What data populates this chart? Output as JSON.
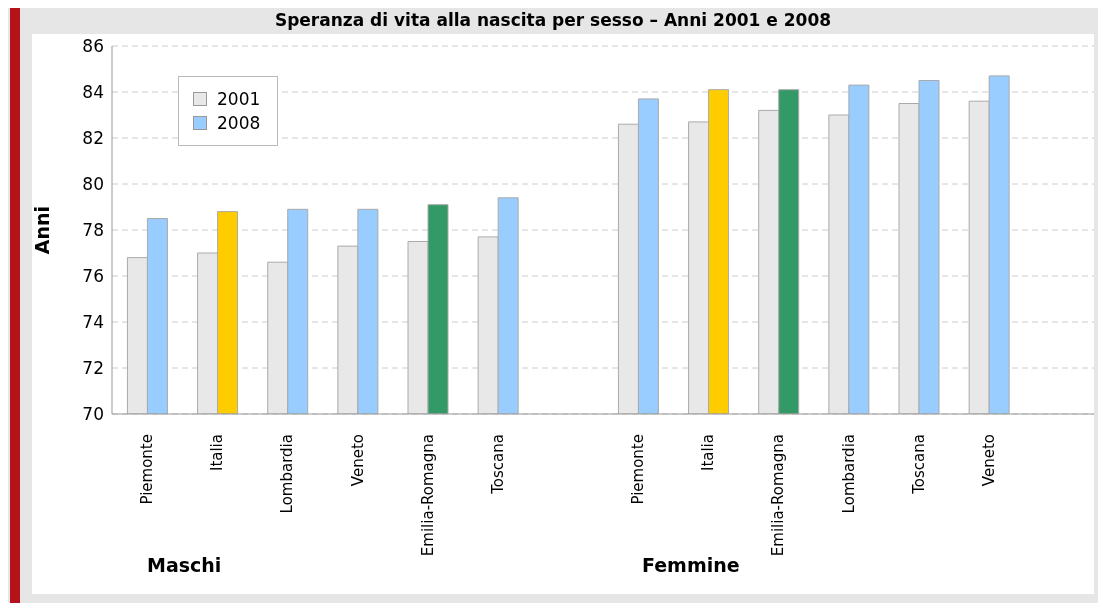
{
  "chart_data": {
    "type": "bar",
    "title": "Speranza di vita alla nascita per sesso – Anni 2001 e 2008",
    "ylabel": "Anni",
    "categories": [
      "Piemonte",
      "Italia",
      "Lombardia",
      "Veneto",
      "Emilia-Romagna",
      "Toscana",
      null,
      "Piemonte",
      "Italia",
      "Emilia-Romagna",
      "Lombardia",
      "Toscana",
      "Veneto",
      null
    ],
    "series": [
      {
        "name": "2001",
        "color": "#e8e8e8",
        "values": [
          76.8,
          77.0,
          76.6,
          77.3,
          77.5,
          77.7,
          null,
          82.6,
          82.7,
          83.2,
          83.0,
          83.5,
          83.6,
          null
        ]
      },
      {
        "name": "2008",
        "color": "#99ccff",
        "colors": [
          "#99ccff",
          "#ffcc00",
          "#99ccff",
          "#99ccff",
          "#339966",
          "#99ccff",
          null,
          "#99ccff",
          "#ffcc00",
          "#339966",
          "#99ccff",
          "#99ccff",
          "#99ccff",
          null
        ],
        "values": [
          78.5,
          78.8,
          78.9,
          78.9,
          79.1,
          79.4,
          null,
          83.7,
          84.1,
          84.1,
          84.3,
          84.5,
          84.7,
          null
        ]
      }
    ],
    "ylim": [
      70,
      86
    ],
    "yticks": [
      70,
      72,
      74,
      76,
      78,
      80,
      82,
      84,
      86
    ],
    "grid": "y",
    "legend": "top left",
    "annotations": [
      "Maschi",
      "Femmine"
    ]
  }
}
